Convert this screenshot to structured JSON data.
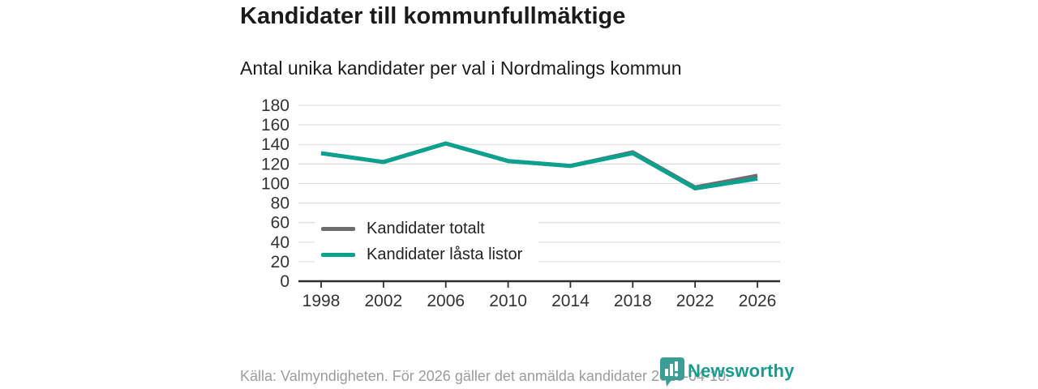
{
  "header": {
    "title": "Kandidater till kommunfullmäktige",
    "subtitle": "Antal unika kandidater per val i Nordmalings kommun"
  },
  "chart_data": {
    "type": "line",
    "x": [
      1998,
      2002,
      2006,
      2010,
      2014,
      2018,
      2022,
      2026
    ],
    "series": [
      {
        "name": "Kandidater totalt",
        "color": "#6e6e6e",
        "values": [
          131,
          122,
          141,
          123,
          118,
          132,
          96,
          108
        ]
      },
      {
        "name": "Kandidater låsta listor",
        "color": "#0ba18f",
        "values": [
          131,
          122,
          141,
          123,
          118,
          131,
          95,
          105
        ]
      }
    ],
    "ylim": [
      0,
      180
    ],
    "ytick_step": 20,
    "grid": "horizontal",
    "grid_color": "#e0e0e0",
    "axis_color": "#2e2e2e",
    "tick_label_color": "#333333",
    "legend_position": "inside-lower-left"
  },
  "footer": {
    "source": "Källa: Valmyndigheten. För 2026 gäller det anmälda kandidater 2026-04-10.",
    "brand": "Newsworthy",
    "brand_color": "#179c90"
  }
}
